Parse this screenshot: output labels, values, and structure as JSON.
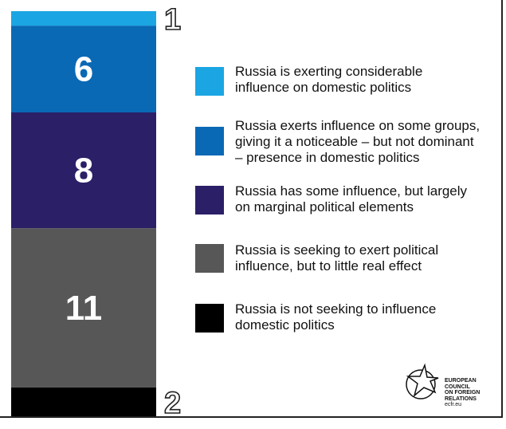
{
  "chart_data": {
    "type": "bar",
    "stacked": true,
    "categories": [
      null
    ],
    "series": [
      {
        "name": "Russia is exerting considerable\ninfluence on domestic politics",
        "color": "#1ba6e3",
        "values": [
          1
        ]
      },
      {
        "name": "Russia exerts influence on some groups,\ngiving it a noticeable – but not dominant\n– presence in domestic politics",
        "color": "#0a69b5",
        "values": [
          6
        ]
      },
      {
        "name": "Russia has some influence, but largely\non marginal political elements",
        "color": "#2b1f68",
        "values": [
          8
        ]
      },
      {
        "name": "Russia is seeking to exert political\ninfluence, but to little real effect",
        "color": "#575757",
        "values": [
          11
        ]
      },
      {
        "name": "Russia is not seeking to influence\ndomestic politics",
        "color": "#000000",
        "values": [
          2
        ]
      }
    ]
  },
  "logo": {
    "lines": [
      "EUROPEAN",
      "COUNCIL",
      "ON FOREIGN",
      "RELATIONS",
      "ecfr.eu"
    ]
  }
}
